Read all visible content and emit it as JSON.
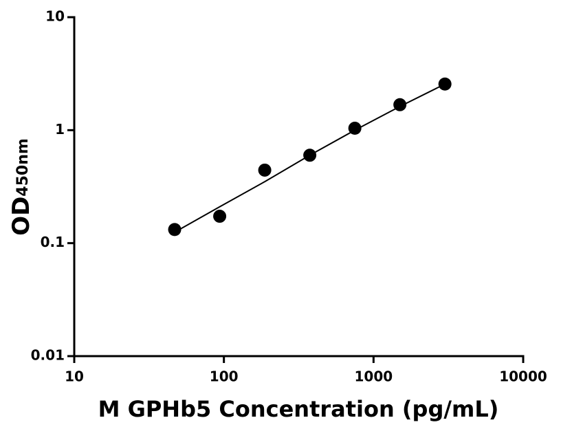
{
  "chart_data": {
    "type": "scatter",
    "x_label": "M GPHb5 Concentration (pg/mL)",
    "y_label": "OD",
    "y_label_sub": "450nm",
    "xscale": "log",
    "yscale": "log",
    "xlim": [
      10,
      10000
    ],
    "ylim": [
      0.01,
      10
    ],
    "xticks": [
      10,
      100,
      1000,
      10000
    ],
    "yticks": [
      0.01,
      0.1,
      1,
      10
    ],
    "color": "#000000",
    "x": [
      46.875,
      93.75,
      187.5,
      375,
      750,
      1500,
      3000
    ],
    "values": [
      0.132,
      0.173,
      0.443,
      0.6,
      1.04,
      1.68,
      2.56
    ],
    "fit": {
      "x": [
        46.875,
        93.75,
        187.5,
        375,
        750,
        1500,
        3000
      ],
      "values": [
        0.125,
        0.21,
        0.35,
        0.6,
        1.0,
        1.62,
        2.56
      ]
    }
  }
}
